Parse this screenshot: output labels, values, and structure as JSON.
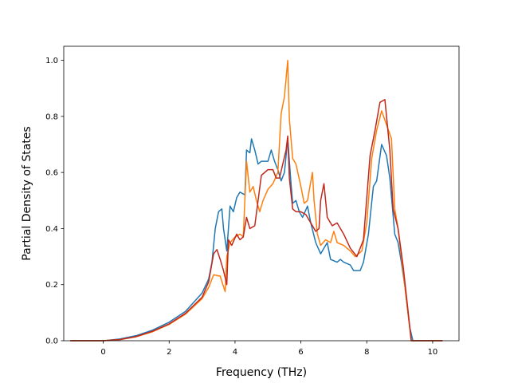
{
  "chart_data": {
    "type": "line",
    "title": "",
    "xlabel": "Frequency (THz)",
    "ylabel": "Partial Density of States",
    "xlim": [
      -1.2,
      10.8
    ],
    "ylim": [
      0.0,
      1.05
    ],
    "xticks": [
      0,
      2,
      4,
      6,
      8,
      10
    ],
    "yticks": [
      0.0,
      0.2,
      0.4,
      0.6,
      0.8,
      1.0
    ],
    "grid": false,
    "legend": "none",
    "series": [
      {
        "color": "#1f77b4",
        "points": [
          [
            -1.0,
            0.0
          ],
          [
            -0.5,
            0.0
          ],
          [
            0.0,
            0.0
          ],
          [
            0.5,
            0.006
          ],
          [
            1.0,
            0.018
          ],
          [
            1.5,
            0.038
          ],
          [
            2.0,
            0.066
          ],
          [
            2.5,
            0.105
          ],
          [
            3.0,
            0.17
          ],
          [
            3.2,
            0.22
          ],
          [
            3.3,
            0.28
          ],
          [
            3.4,
            0.4
          ],
          [
            3.5,
            0.46
          ],
          [
            3.6,
            0.47
          ],
          [
            3.65,
            0.4
          ],
          [
            3.75,
            0.32
          ],
          [
            3.85,
            0.48
          ],
          [
            3.95,
            0.46
          ],
          [
            4.05,
            0.51
          ],
          [
            4.15,
            0.53
          ],
          [
            4.3,
            0.52
          ],
          [
            4.35,
            0.68
          ],
          [
            4.45,
            0.67
          ],
          [
            4.5,
            0.72
          ],
          [
            4.6,
            0.68
          ],
          [
            4.7,
            0.63
          ],
          [
            4.8,
            0.64
          ],
          [
            5.0,
            0.64
          ],
          [
            5.1,
            0.68
          ],
          [
            5.2,
            0.64
          ],
          [
            5.3,
            0.61
          ],
          [
            5.4,
            0.57
          ],
          [
            5.5,
            0.6
          ],
          [
            5.6,
            0.72
          ],
          [
            5.7,
            0.56
          ],
          [
            5.75,
            0.49
          ],
          [
            5.85,
            0.5
          ],
          [
            5.95,
            0.46
          ],
          [
            6.05,
            0.44
          ],
          [
            6.2,
            0.48
          ],
          [
            6.3,
            0.42
          ],
          [
            6.45,
            0.35
          ],
          [
            6.6,
            0.31
          ],
          [
            6.7,
            0.33
          ],
          [
            6.8,
            0.35
          ],
          [
            6.9,
            0.29
          ],
          [
            7.1,
            0.28
          ],
          [
            7.2,
            0.29
          ],
          [
            7.3,
            0.28
          ],
          [
            7.5,
            0.27
          ],
          [
            7.6,
            0.25
          ],
          [
            7.8,
            0.25
          ],
          [
            7.9,
            0.28
          ],
          [
            8.05,
            0.38
          ],
          [
            8.2,
            0.55
          ],
          [
            8.3,
            0.57
          ],
          [
            8.45,
            0.7
          ],
          [
            8.6,
            0.66
          ],
          [
            8.7,
            0.58
          ],
          [
            8.85,
            0.38
          ],
          [
            8.95,
            0.35
          ],
          [
            9.05,
            0.28
          ],
          [
            9.15,
            0.2
          ],
          [
            9.3,
            0.05
          ],
          [
            9.4,
            0.0
          ],
          [
            9.6,
            0.0
          ],
          [
            10.0,
            0.0
          ],
          [
            10.3,
            0.0
          ]
        ]
      },
      {
        "color": "#ff7f0e",
        "points": [
          [
            -1.0,
            0.0
          ],
          [
            -0.5,
            0.0
          ],
          [
            0.0,
            0.0
          ],
          [
            0.5,
            0.004
          ],
          [
            1.0,
            0.014
          ],
          [
            1.5,
            0.032
          ],
          [
            2.0,
            0.058
          ],
          [
            2.5,
            0.095
          ],
          [
            3.0,
            0.15
          ],
          [
            3.2,
            0.19
          ],
          [
            3.35,
            0.235
          ],
          [
            3.55,
            0.23
          ],
          [
            3.7,
            0.175
          ],
          [
            3.75,
            0.3
          ],
          [
            3.85,
            0.35
          ],
          [
            4.0,
            0.37
          ],
          [
            4.15,
            0.38
          ],
          [
            4.25,
            0.37
          ],
          [
            4.35,
            0.64
          ],
          [
            4.45,
            0.53
          ],
          [
            4.55,
            0.55
          ],
          [
            4.65,
            0.5
          ],
          [
            4.75,
            0.46
          ],
          [
            4.85,
            0.5
          ],
          [
            5.0,
            0.54
          ],
          [
            5.15,
            0.56
          ],
          [
            5.3,
            0.6
          ],
          [
            5.4,
            0.81
          ],
          [
            5.5,
            0.87
          ],
          [
            5.6,
            1.0
          ],
          [
            5.65,
            0.79
          ],
          [
            5.75,
            0.65
          ],
          [
            5.85,
            0.63
          ],
          [
            6.0,
            0.55
          ],
          [
            6.1,
            0.49
          ],
          [
            6.2,
            0.5
          ],
          [
            6.35,
            0.6
          ],
          [
            6.4,
            0.5
          ],
          [
            6.5,
            0.38
          ],
          [
            6.6,
            0.34
          ],
          [
            6.75,
            0.36
          ],
          [
            6.9,
            0.35
          ],
          [
            7.0,
            0.39
          ],
          [
            7.1,
            0.35
          ],
          [
            7.3,
            0.34
          ],
          [
            7.5,
            0.32
          ],
          [
            7.65,
            0.3
          ],
          [
            7.85,
            0.32
          ],
          [
            8.0,
            0.42
          ],
          [
            8.15,
            0.65
          ],
          [
            8.3,
            0.75
          ],
          [
            8.45,
            0.82
          ],
          [
            8.6,
            0.77
          ],
          [
            8.75,
            0.72
          ],
          [
            8.85,
            0.47
          ],
          [
            8.95,
            0.4
          ],
          [
            9.1,
            0.25
          ],
          [
            9.25,
            0.1
          ],
          [
            9.35,
            0.0
          ],
          [
            9.6,
            0.0
          ],
          [
            10.0,
            0.0
          ],
          [
            10.3,
            0.0
          ]
        ]
      },
      {
        "color": "#c0281c",
        "points": [
          [
            -1.0,
            0.0
          ],
          [
            -0.5,
            0.0
          ],
          [
            0.0,
            0.0
          ],
          [
            0.5,
            0.004
          ],
          [
            1.0,
            0.015
          ],
          [
            1.5,
            0.034
          ],
          [
            2.0,
            0.06
          ],
          [
            2.5,
            0.098
          ],
          [
            3.0,
            0.155
          ],
          [
            3.2,
            0.21
          ],
          [
            3.35,
            0.31
          ],
          [
            3.45,
            0.325
          ],
          [
            3.55,
            0.29
          ],
          [
            3.65,
            0.25
          ],
          [
            3.75,
            0.2
          ],
          [
            3.8,
            0.36
          ],
          [
            3.9,
            0.34
          ],
          [
            4.05,
            0.38
          ],
          [
            4.15,
            0.36
          ],
          [
            4.25,
            0.37
          ],
          [
            4.35,
            0.44
          ],
          [
            4.45,
            0.4
          ],
          [
            4.6,
            0.41
          ],
          [
            4.7,
            0.5
          ],
          [
            4.8,
            0.59
          ],
          [
            5.0,
            0.61
          ],
          [
            5.15,
            0.61
          ],
          [
            5.25,
            0.58
          ],
          [
            5.35,
            0.58
          ],
          [
            5.45,
            0.63
          ],
          [
            5.55,
            0.68
          ],
          [
            5.6,
            0.73
          ],
          [
            5.65,
            0.58
          ],
          [
            5.75,
            0.47
          ],
          [
            5.85,
            0.46
          ],
          [
            6.0,
            0.46
          ],
          [
            6.15,
            0.45
          ],
          [
            6.3,
            0.42
          ],
          [
            6.45,
            0.39
          ],
          [
            6.55,
            0.4
          ],
          [
            6.6,
            0.5
          ],
          [
            6.7,
            0.56
          ],
          [
            6.8,
            0.44
          ],
          [
            6.95,
            0.41
          ],
          [
            7.1,
            0.42
          ],
          [
            7.3,
            0.38
          ],
          [
            7.5,
            0.33
          ],
          [
            7.7,
            0.3
          ],
          [
            7.9,
            0.36
          ],
          [
            8.1,
            0.66
          ],
          [
            8.25,
            0.75
          ],
          [
            8.4,
            0.85
          ],
          [
            8.55,
            0.86
          ],
          [
            8.7,
            0.68
          ],
          [
            8.8,
            0.47
          ],
          [
            8.95,
            0.4
          ],
          [
            9.1,
            0.27
          ],
          [
            9.25,
            0.11
          ],
          [
            9.35,
            0.0
          ],
          [
            9.6,
            0.0
          ],
          [
            10.0,
            0.0
          ],
          [
            10.3,
            0.0
          ]
        ]
      }
    ]
  }
}
